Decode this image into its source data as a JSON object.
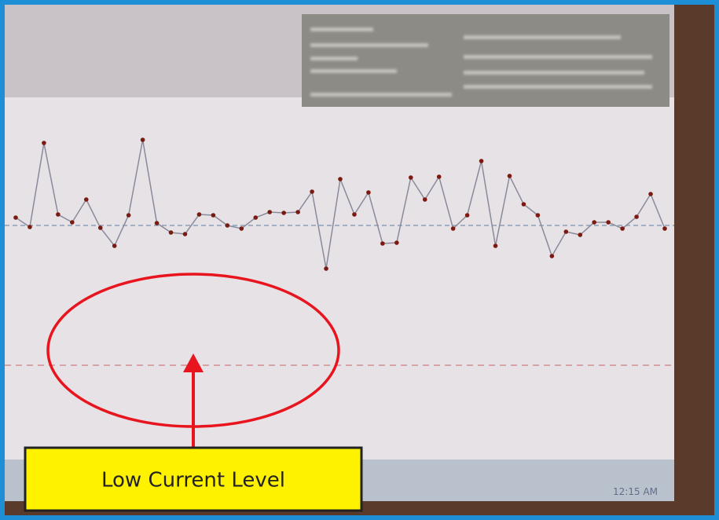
{
  "chart_data": {
    "type": "line",
    "color": "#8a8a9a",
    "marker_color": "#7a1a10",
    "values": [
      1.0,
      -0.2,
      10.5,
      1.4,
      0.4,
      3.3,
      -0.3,
      -2.6,
      1.3,
      10.9,
      0.3,
      -0.9,
      -1.1,
      1.4,
      1.3,
      0,
      -0.4,
      1.0,
      1.7,
      1.6,
      1.7,
      4.3,
      -5.5,
      5.9,
      1.4,
      4.2,
      -2.3,
      -2.2,
      6.1,
      3.3,
      6.2,
      -0.4,
      1.3,
      8.2,
      -2.6,
      6.3,
      2.7,
      1.3,
      -3.9,
      -0.8,
      -1.2,
      0.4,
      0.4,
      -0.4,
      1.1,
      4.0,
      -0.4
    ],
    "ylim": [
      -18,
      15
    ],
    "center_line": 0,
    "lower_limit": -17.8
  },
  "annotation": {
    "label": "Low Current Level"
  },
  "taskbar": {
    "clock": "12:15 AM"
  }
}
